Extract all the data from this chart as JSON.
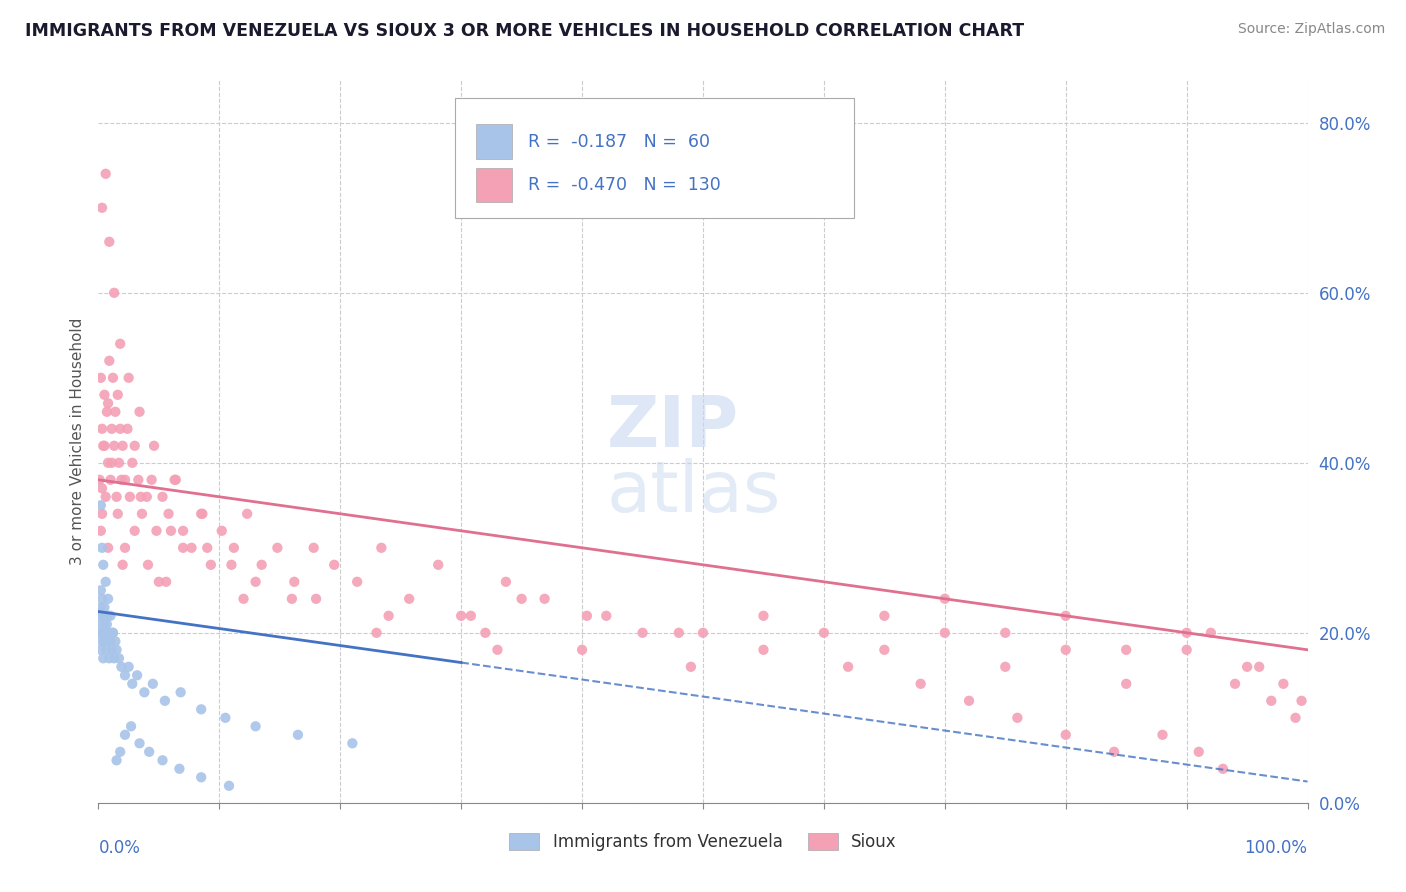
{
  "title": "IMMIGRANTS FROM VENEZUELA VS SIOUX 3 OR MORE VEHICLES IN HOUSEHOLD CORRELATION CHART",
  "source": "Source: ZipAtlas.com",
  "ylabel": "3 or more Vehicles in Household",
  "legend_label1": "Immigrants from Venezuela",
  "legend_label2": "Sioux",
  "r1": -0.187,
  "n1": 60,
  "r2": -0.47,
  "n2": 130,
  "color_blue": "#a8c4e8",
  "color_pink": "#f4a0b5",
  "color_blue_line": "#4472c4",
  "color_pink_line": "#e07090",
  "xlim": [
    0.0,
    1.0
  ],
  "ylim": [
    0.0,
    0.85
  ],
  "yticks": [
    0.0,
    0.2,
    0.4,
    0.6,
    0.8
  ],
  "right_ytick_labels": [
    "0.0%",
    "20.0%",
    "40.0%",
    "60.0%",
    "80.0%"
  ],
  "venezuela_x": [
    0.001,
    0.001,
    0.002,
    0.002,
    0.002,
    0.003,
    0.003,
    0.003,
    0.004,
    0.004,
    0.004,
    0.005,
    0.005,
    0.005,
    0.006,
    0.006,
    0.007,
    0.007,
    0.008,
    0.008,
    0.009,
    0.009,
    0.01,
    0.011,
    0.012,
    0.013,
    0.014,
    0.015,
    0.017,
    0.019,
    0.022,
    0.025,
    0.028,
    0.032,
    0.038,
    0.045,
    0.055,
    0.068,
    0.085,
    0.105,
    0.13,
    0.165,
    0.21,
    0.002,
    0.003,
    0.004,
    0.006,
    0.008,
    0.01,
    0.012,
    0.015,
    0.018,
    0.022,
    0.027,
    0.034,
    0.042,
    0.053,
    0.067,
    0.085,
    0.108
  ],
  "venezuela_y": [
    0.2,
    0.22,
    0.18,
    0.23,
    0.25,
    0.19,
    0.21,
    0.24,
    0.2,
    0.22,
    0.17,
    0.21,
    0.23,
    0.19,
    0.2,
    0.22,
    0.18,
    0.21,
    0.19,
    0.22,
    0.17,
    0.2,
    0.19,
    0.18,
    0.2,
    0.17,
    0.19,
    0.18,
    0.17,
    0.16,
    0.15,
    0.16,
    0.14,
    0.15,
    0.13,
    0.14,
    0.12,
    0.13,
    0.11,
    0.1,
    0.09,
    0.08,
    0.07,
    0.35,
    0.3,
    0.28,
    0.26,
    0.24,
    0.22,
    0.2,
    0.05,
    0.06,
    0.08,
    0.09,
    0.07,
    0.06,
    0.05,
    0.04,
    0.03,
    0.02
  ],
  "sioux_x": [
    0.001,
    0.002,
    0.003,
    0.004,
    0.005,
    0.006,
    0.007,
    0.008,
    0.009,
    0.01,
    0.011,
    0.012,
    0.013,
    0.014,
    0.015,
    0.016,
    0.017,
    0.018,
    0.019,
    0.02,
    0.022,
    0.024,
    0.026,
    0.028,
    0.03,
    0.033,
    0.036,
    0.04,
    0.044,
    0.048,
    0.053,
    0.058,
    0.064,
    0.07,
    0.077,
    0.085,
    0.093,
    0.102,
    0.112,
    0.123,
    0.135,
    0.148,
    0.162,
    0.178,
    0.195,
    0.214,
    0.234,
    0.257,
    0.281,
    0.308,
    0.337,
    0.369,
    0.404,
    0.003,
    0.006,
    0.009,
    0.013,
    0.018,
    0.025,
    0.034,
    0.046,
    0.063,
    0.086,
    0.002,
    0.003,
    0.005,
    0.008,
    0.011,
    0.016,
    0.022,
    0.03,
    0.041,
    0.056,
    0.003,
    0.008,
    0.02,
    0.05,
    0.12,
    0.3,
    0.5,
    0.65,
    0.7,
    0.75,
    0.8,
    0.85,
    0.9,
    0.95,
    0.35,
    0.42,
    0.48,
    0.55,
    0.6,
    0.65,
    0.7,
    0.75,
    0.8,
    0.85,
    0.9,
    0.92,
    0.94,
    0.96,
    0.97,
    0.98,
    0.99,
    0.995,
    0.45,
    0.55,
    0.62,
    0.68,
    0.72,
    0.76,
    0.8,
    0.84,
    0.88,
    0.91,
    0.93,
    0.06,
    0.09,
    0.13,
    0.18,
    0.24,
    0.32,
    0.4,
    0.49,
    0.035,
    0.07,
    0.11,
    0.16,
    0.23,
    0.33
  ],
  "sioux_y": [
    0.38,
    0.5,
    0.44,
    0.42,
    0.48,
    0.36,
    0.46,
    0.4,
    0.52,
    0.38,
    0.44,
    0.5,
    0.42,
    0.46,
    0.36,
    0.48,
    0.4,
    0.44,
    0.38,
    0.42,
    0.38,
    0.44,
    0.36,
    0.4,
    0.42,
    0.38,
    0.34,
    0.36,
    0.38,
    0.32,
    0.36,
    0.34,
    0.38,
    0.32,
    0.3,
    0.34,
    0.28,
    0.32,
    0.3,
    0.34,
    0.28,
    0.3,
    0.26,
    0.3,
    0.28,
    0.26,
    0.3,
    0.24,
    0.28,
    0.22,
    0.26,
    0.24,
    0.22,
    0.7,
    0.74,
    0.66,
    0.6,
    0.54,
    0.5,
    0.46,
    0.42,
    0.38,
    0.34,
    0.32,
    0.37,
    0.42,
    0.47,
    0.4,
    0.34,
    0.3,
    0.32,
    0.28,
    0.26,
    0.34,
    0.3,
    0.28,
    0.26,
    0.24,
    0.22,
    0.2,
    0.22,
    0.24,
    0.2,
    0.22,
    0.18,
    0.2,
    0.16,
    0.24,
    0.22,
    0.2,
    0.22,
    0.2,
    0.18,
    0.2,
    0.16,
    0.18,
    0.14,
    0.18,
    0.2,
    0.14,
    0.16,
    0.12,
    0.14,
    0.1,
    0.12,
    0.2,
    0.18,
    0.16,
    0.14,
    0.12,
    0.1,
    0.08,
    0.06,
    0.08,
    0.06,
    0.04,
    0.32,
    0.3,
    0.26,
    0.24,
    0.22,
    0.2,
    0.18,
    0.16,
    0.36,
    0.3,
    0.28,
    0.24,
    0.2,
    0.18
  ]
}
